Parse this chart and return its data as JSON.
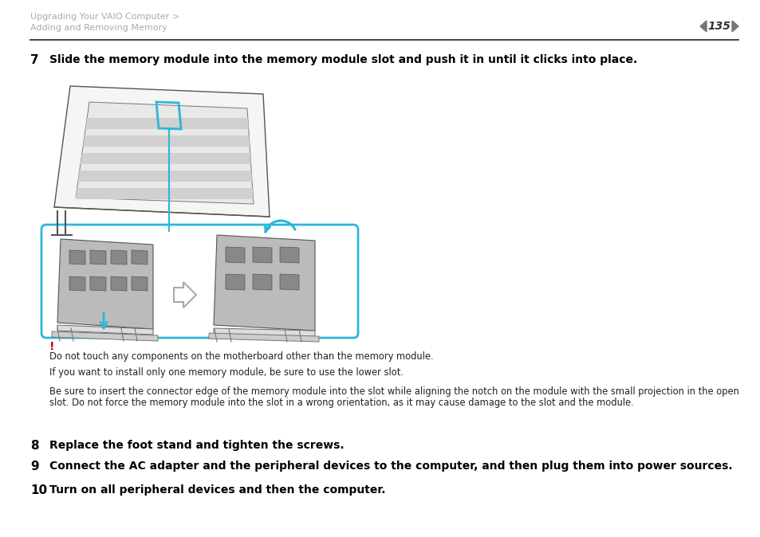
{
  "bg_color": "#ffffff",
  "header_text_line1": "Upgrading Your VAIO Computer >",
  "header_text_line2": "Adding and Removing Memory",
  "header_color": "#aaaaaa",
  "page_number": "135",
  "separator_color": "#222222",
  "step7_number": "7",
  "step7_text": "Slide the memory module into the memory module slot and push it in until it clicks into place.",
  "warning_symbol": "!",
  "warning_color": "#cc0000",
  "warning_text1": "Do not touch any components on the motherboard other than the memory module.",
  "warning_text2": "If you want to install only one memory module, be sure to use the lower slot.",
  "warning_text3a": "Be sure to insert the connector edge of the memory module into the slot while aligning the notch on the module with the small projection in the open",
  "warning_text3b": "slot. Do not force the memory module into the slot in a wrong orientation, as it may cause damage to the slot and the module.",
  "step8_number": "8",
  "step8_text": "Replace the foot stand and tighten the screws.",
  "step9_number": "9",
  "step9_text": "Connect the AC adapter and the peripheral devices to the computer, and then plug them into power sources.",
  "step10_number": "10",
  "step10_text": "Turn on all peripheral devices and then the computer.",
  "cyan_color": "#29b8d8",
  "text_color": "#000000",
  "small_text_color": "#222222",
  "gray_color": "#999999"
}
